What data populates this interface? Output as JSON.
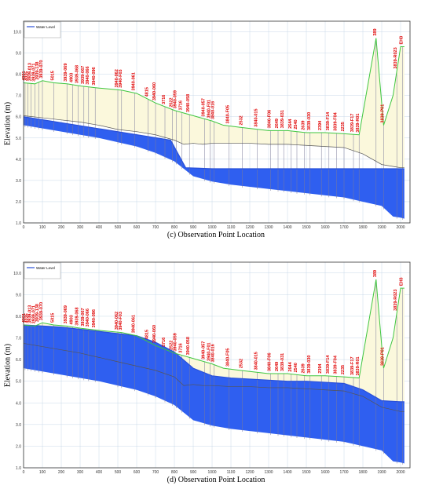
{
  "colors": {
    "water_fill": "#2f5ff0",
    "water_line": "#2a50d8",
    "ground_fill": "#fbf8dc",
    "ground_line": "#3fc63f",
    "invert_line": "#555555",
    "grid": "#c8d8e8",
    "label": "#e00000",
    "axis": "#333333"
  },
  "chart_data": [
    {
      "type": "area",
      "caption": "(c) Observation Point Location",
      "ylabel": "Elevation (m)",
      "legend": "Water Level",
      "legend_position": "top-left",
      "xlim": [
        0,
        2050
      ],
      "ylim": [
        1.0,
        10.5
      ],
      "xticks": [
        0,
        100,
        200,
        300,
        400,
        500,
        600,
        700,
        800,
        900,
        1000,
        1100,
        1200,
        1300,
        1400,
        1500,
        1600,
        1700,
        1800,
        1900,
        2000
      ],
      "yticks": [
        1.0,
        2.0,
        3.0,
        4.0,
        5.0,
        6.0,
        7.0,
        8.0,
        9.0,
        10.0
      ],
      "grid": true,
      "ground": {
        "x": [
          0,
          60,
          100,
          160,
          230,
          300,
          400,
          520,
          600,
          700,
          800,
          900,
          1000,
          1060,
          1150,
          1300,
          1400,
          1500,
          1600,
          1700,
          1780,
          1870,
          1910,
          1960,
          2000,
          2020
        ],
        "y": [
          7.6,
          7.55,
          7.7,
          7.6,
          7.55,
          7.45,
          7.35,
          7.25,
          7.1,
          6.65,
          6.3,
          6.05,
          5.8,
          5.6,
          5.5,
          5.35,
          5.35,
          5.25,
          5.25,
          5.2,
          5.15,
          9.7,
          5.6,
          7.0,
          9.3,
          9.3
        ]
      },
      "invert": {
        "x": [
          0,
          100,
          200,
          300,
          400,
          500,
          600,
          700,
          800,
          850,
          900,
          950,
          1000,
          1100,
          1200,
          1300,
          1400,
          1500,
          1600,
          1700,
          1800,
          1900,
          2000,
          2020
        ],
        "y": [
          6.05,
          5.95,
          5.85,
          5.75,
          5.6,
          5.4,
          5.3,
          5.15,
          4.9,
          4.7,
          4.75,
          4.7,
          4.75,
          4.75,
          4.75,
          4.7,
          4.7,
          4.65,
          4.6,
          4.55,
          4.25,
          3.75,
          3.6,
          3.6
        ]
      },
      "water_top": {
        "x": [
          0,
          780,
          860,
          1000,
          2020
        ],
        "y": [
          6.0,
          4.9,
          3.6,
          3.55,
          3.55
        ]
      },
      "water_bottom": {
        "x": [
          0,
          200,
          400,
          600,
          700,
          800,
          900,
          1000,
          1100,
          1200,
          1300,
          1400,
          1500,
          1600,
          1700,
          1800,
          1900,
          1960,
          2000,
          2020
        ],
        "y": [
          5.6,
          5.3,
          5.0,
          4.6,
          4.3,
          3.9,
          3.2,
          2.95,
          2.8,
          2.7,
          2.6,
          2.5,
          2.4,
          2.3,
          2.2,
          2.0,
          1.8,
          1.3,
          1.25,
          1.2
        ]
      },
      "points": [
        {
          "x": 8,
          "label": "4991"
        },
        {
          "x": 22,
          "label": "4035"
        },
        {
          "x": 40,
          "label": "3939-013"
        },
        {
          "x": 60,
          "label": "3939-071"
        },
        {
          "x": 80,
          "label": "3939-138"
        },
        {
          "x": 100,
          "label": "3939-070"
        },
        {
          "x": 160,
          "label": "5015"
        },
        {
          "x": 230,
          "label": "3939-069"
        },
        {
          "x": 260,
          "label": "4903"
        },
        {
          "x": 290,
          "label": "3939-068"
        },
        {
          "x": 320,
          "label": "3939-067"
        },
        {
          "x": 345,
          "label": "3940-066"
        },
        {
          "x": 380,
          "label": "3940-096"
        },
        {
          "x": 500,
          "label": "3940-062"
        },
        {
          "x": 520,
          "label": "3940-F03"
        },
        {
          "x": 590,
          "label": "3940-061"
        },
        {
          "x": 660,
          "label": "4815"
        },
        {
          "x": 700,
          "label": "3940-060"
        },
        {
          "x": 750,
          "label": "3716"
        },
        {
          "x": 790,
          "label": "2522"
        },
        {
          "x": 810,
          "label": "3940-059"
        },
        {
          "x": 840,
          "label": "3716"
        },
        {
          "x": 880,
          "label": "3940-058"
        },
        {
          "x": 960,
          "label": "3940-057"
        },
        {
          "x": 990,
          "label": "3940-F01"
        },
        {
          "x": 1010,
          "label": "3840-016"
        },
        {
          "x": 1090,
          "label": "3840-F05"
        },
        {
          "x": 1160,
          "label": "2532"
        },
        {
          "x": 1240,
          "label": "3840-015"
        },
        {
          "x": 1310,
          "label": "3840-F06"
        },
        {
          "x": 1350,
          "label": "2649"
        },
        {
          "x": 1380,
          "label": "3839-031"
        },
        {
          "x": 1420,
          "label": "2644"
        },
        {
          "x": 1450,
          "label": "2540"
        },
        {
          "x": 1490,
          "label": "2639"
        },
        {
          "x": 1520,
          "label": "3839-030"
        },
        {
          "x": 1580,
          "label": "2394"
        },
        {
          "x": 1620,
          "label": "3839-F14"
        },
        {
          "x": 1660,
          "label": "3839-F04"
        },
        {
          "x": 1700,
          "label": "2235"
        },
        {
          "x": 1750,
          "label": "3839-F17"
        },
        {
          "x": 1780,
          "label": "3839-R01"
        },
        {
          "x": 1870,
          "label": "389"
        },
        {
          "x": 1910,
          "label": "3839-P01"
        },
        {
          "x": 1980,
          "label": "3839-R023"
        },
        {
          "x": 2010,
          "label": "EH3"
        }
      ]
    },
    {
      "type": "area",
      "caption": "(d) Observation Point Location",
      "ylabel": "Elevation (m)",
      "legend": "Water Level",
      "legend_position": "top-left",
      "xlim": [
        0,
        2050
      ],
      "ylim": [
        1.0,
        10.5
      ],
      "xticks": [
        0,
        100,
        200,
        300,
        400,
        500,
        600,
        700,
        800,
        900,
        1000,
        1100,
        1200,
        1300,
        1400,
        1500,
        1600,
        1700,
        1800,
        1900,
        2000
      ],
      "yticks": [
        1.0,
        2.0,
        3.0,
        4.0,
        5.0,
        6.0,
        7.0,
        8.0,
        9.0,
        10.0
      ],
      "grid": true,
      "ground": {
        "x": [
          0,
          60,
          100,
          160,
          230,
          300,
          400,
          520,
          600,
          700,
          800,
          900,
          1000,
          1060,
          1150,
          1300,
          1400,
          1500,
          1600,
          1700,
          1780,
          1870,
          1910,
          1960,
          2000,
          2020
        ],
        "y": [
          7.6,
          7.55,
          7.7,
          7.6,
          7.55,
          7.45,
          7.35,
          7.25,
          7.1,
          6.65,
          6.3,
          6.05,
          5.8,
          5.6,
          5.5,
          5.35,
          5.35,
          5.25,
          5.25,
          5.2,
          5.15,
          9.7,
          5.6,
          7.0,
          9.3,
          9.3
        ]
      },
      "invert": {
        "x": [
          0,
          100,
          200,
          300,
          400,
          500,
          600,
          700,
          800,
          850,
          900,
          950,
          1000,
          1100,
          1200,
          1300,
          1400,
          1500,
          1600,
          1700,
          1800,
          1900,
          2000,
          2020
        ],
        "y": [
          6.75,
          6.6,
          6.45,
          6.3,
          6.1,
          5.9,
          5.7,
          5.5,
          5.2,
          4.8,
          4.85,
          4.8,
          4.8,
          4.75,
          4.75,
          4.7,
          4.7,
          4.65,
          4.6,
          4.55,
          4.3,
          3.8,
          3.6,
          3.6
        ]
      },
      "water_top": {
        "x": [
          0,
          200,
          400,
          600,
          700,
          800,
          900,
          1000,
          1100,
          1200,
          1300,
          1400,
          1500,
          1600,
          1700,
          1800,
          1900,
          2000,
          2020
        ],
        "y": [
          7.6,
          7.5,
          7.3,
          7.1,
          6.8,
          6.35,
          5.6,
          5.25,
          5.15,
          5.1,
          5.05,
          5.0,
          5.0,
          4.95,
          4.9,
          4.6,
          4.1,
          4.05,
          4.05
        ]
      },
      "water_bottom": {
        "x": [
          0,
          200,
          400,
          600,
          700,
          800,
          900,
          1000,
          1100,
          1200,
          1300,
          1400,
          1500,
          1600,
          1700,
          1800,
          1900,
          1960,
          2000,
          2020
        ],
        "y": [
          5.6,
          5.3,
          5.0,
          4.6,
          4.3,
          3.9,
          3.2,
          2.95,
          2.8,
          2.7,
          2.6,
          2.5,
          2.4,
          2.3,
          2.2,
          2.0,
          1.8,
          1.3,
          1.25,
          1.2
        ]
      },
      "points": [
        {
          "x": 8,
          "label": "4991"
        },
        {
          "x": 22,
          "label": "4035"
        },
        {
          "x": 40,
          "label": "3939-013"
        },
        {
          "x": 60,
          "label": "3939-071"
        },
        {
          "x": 80,
          "label": "3939-138"
        },
        {
          "x": 100,
          "label": "3939-070"
        },
        {
          "x": 160,
          "label": "5015"
        },
        {
          "x": 230,
          "label": "3939-069"
        },
        {
          "x": 260,
          "label": "4903"
        },
        {
          "x": 290,
          "label": "3939-068"
        },
        {
          "x": 320,
          "label": "3939-067"
        },
        {
          "x": 345,
          "label": "3940-066"
        },
        {
          "x": 380,
          "label": "3940-096"
        },
        {
          "x": 500,
          "label": "3940-062"
        },
        {
          "x": 520,
          "label": "3940-F03"
        },
        {
          "x": 590,
          "label": "3940-061"
        },
        {
          "x": 660,
          "label": "4815"
        },
        {
          "x": 700,
          "label": "3940-060"
        },
        {
          "x": 750,
          "label": "3716"
        },
        {
          "x": 790,
          "label": "2522"
        },
        {
          "x": 810,
          "label": "3940-059"
        },
        {
          "x": 840,
          "label": "3716"
        },
        {
          "x": 880,
          "label": "3940-058"
        },
        {
          "x": 960,
          "label": "3940-057"
        },
        {
          "x": 990,
          "label": "3940-F01"
        },
        {
          "x": 1010,
          "label": "3840-016"
        },
        {
          "x": 1090,
          "label": "3840-F05"
        },
        {
          "x": 1160,
          "label": "2532"
        },
        {
          "x": 1240,
          "label": "3840-015"
        },
        {
          "x": 1310,
          "label": "3840-F06"
        },
        {
          "x": 1350,
          "label": "2649"
        },
        {
          "x": 1380,
          "label": "3839-031"
        },
        {
          "x": 1420,
          "label": "2644"
        },
        {
          "x": 1450,
          "label": "2540"
        },
        {
          "x": 1490,
          "label": "2639"
        },
        {
          "x": 1520,
          "label": "3839-030"
        },
        {
          "x": 1580,
          "label": "2394"
        },
        {
          "x": 1620,
          "label": "3839-F14"
        },
        {
          "x": 1660,
          "label": "3839-F04"
        },
        {
          "x": 1700,
          "label": "2235"
        },
        {
          "x": 1750,
          "label": "3839-F17"
        },
        {
          "x": 1780,
          "label": "3839-R01"
        },
        {
          "x": 1870,
          "label": "389"
        },
        {
          "x": 1910,
          "label": "3839-P01"
        },
        {
          "x": 1980,
          "label": "3839-R023"
        },
        {
          "x": 2010,
          "label": "EH3"
        }
      ]
    }
  ]
}
